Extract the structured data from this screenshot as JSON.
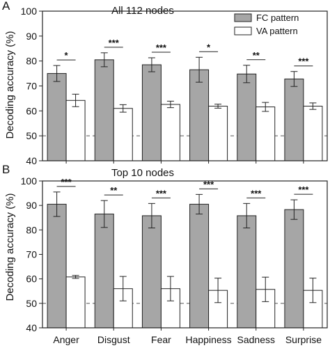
{
  "ylabel": "Decoding accuracy (%)",
  "legend": [
    {
      "label": "FC pattern",
      "color": "#a6a6a6"
    },
    {
      "label": "VA pattern",
      "color": "#ffffff"
    }
  ],
  "colors": {
    "fc": "#a6a6a6",
    "va": "#ffffff",
    "stroke": "#222222",
    "chance_line": "#555555"
  },
  "chart_data": [
    {
      "panel": "A",
      "type": "bar",
      "title": "All 112 nodes",
      "categories": [
        "Anger",
        "Disgust",
        "Fear",
        "Happiness",
        "Sadness",
        "Surprise"
      ],
      "series": [
        {
          "name": "FC pattern",
          "values": [
            75.0,
            80.5,
            78.5,
            76.5,
            74.8,
            72.8
          ],
          "errors": [
            3.2,
            2.8,
            2.8,
            5.0,
            3.5,
            3.0
          ]
        },
        {
          "name": "VA pattern",
          "values": [
            64.2,
            61.0,
            62.6,
            61.9,
            61.6,
            61.9
          ],
          "errors": [
            2.5,
            1.5,
            1.3,
            0.8,
            1.8,
            1.3
          ]
        }
      ],
      "significance": [
        "*",
        "***",
        "***",
        "*",
        "**",
        "***"
      ],
      "ylim": [
        40,
        100
      ],
      "yticks": [
        40,
        50,
        60,
        70,
        80,
        90,
        100
      ],
      "chance_level": 50,
      "show_xticklabels": false,
      "legend_position": "top-right"
    },
    {
      "panel": "B",
      "type": "bar",
      "title": "Top 10 nodes",
      "categories": [
        "Anger",
        "Disgust",
        "Fear",
        "Happiness",
        "Sadness",
        "Surprise"
      ],
      "series": [
        {
          "name": "FC pattern",
          "values": [
            90.5,
            86.5,
            85.8,
            90.5,
            85.8,
            88.3
          ],
          "errors": [
            5.0,
            5.5,
            5.0,
            4.0,
            5.0,
            4.0
          ]
        },
        {
          "name": "VA pattern",
          "values": [
            60.8,
            56.0,
            56.0,
            55.3,
            55.7,
            55.3
          ],
          "errors": [
            0.6,
            5.0,
            5.0,
            5.0,
            5.0,
            5.0
          ]
        }
      ],
      "significance": [
        "***",
        "**",
        "***",
        "***",
        "***",
        "***"
      ],
      "ylim": [
        40,
        100
      ],
      "yticks": [
        40,
        50,
        60,
        70,
        80,
        90,
        100
      ],
      "chance_level": 50,
      "show_xticklabels": true
    }
  ]
}
